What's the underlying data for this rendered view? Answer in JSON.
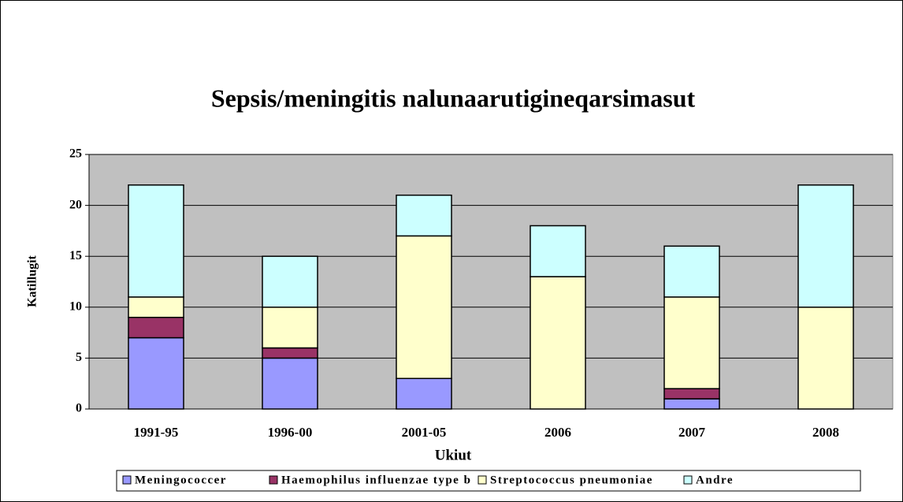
{
  "chart_data": {
    "type": "bar",
    "stacked": true,
    "title": "Sepsis/meningitis nalunaarutigineqarsimasut",
    "x_label": "Ukiut",
    "y_label": "Katillugit",
    "categories": [
      "1991-95",
      "1996-00",
      "2001-05",
      "2006",
      "2007",
      "2008"
    ],
    "series": [
      {
        "name": "Meningococcer",
        "color": "#9999ff",
        "values": [
          7,
          5,
          3,
          0,
          1,
          0
        ]
      },
      {
        "name": "Haemophilus influenzae type b",
        "color": "#993366",
        "values": [
          2,
          1,
          0,
          0,
          1,
          0
        ]
      },
      {
        "name": "Streptococcus pneumoniae",
        "color": "#ffffcc",
        "values": [
          2,
          4,
          14,
          13,
          9,
          10
        ]
      },
      {
        "name": "Andre",
        "color": "#ccffff",
        "values": [
          11,
          5,
          4,
          5,
          5,
          12
        ]
      }
    ],
    "ylim": [
      0,
      25
    ],
    "yticks": [
      0,
      5,
      10,
      15,
      20,
      25
    ],
    "grid": true,
    "legend": "bottom"
  }
}
